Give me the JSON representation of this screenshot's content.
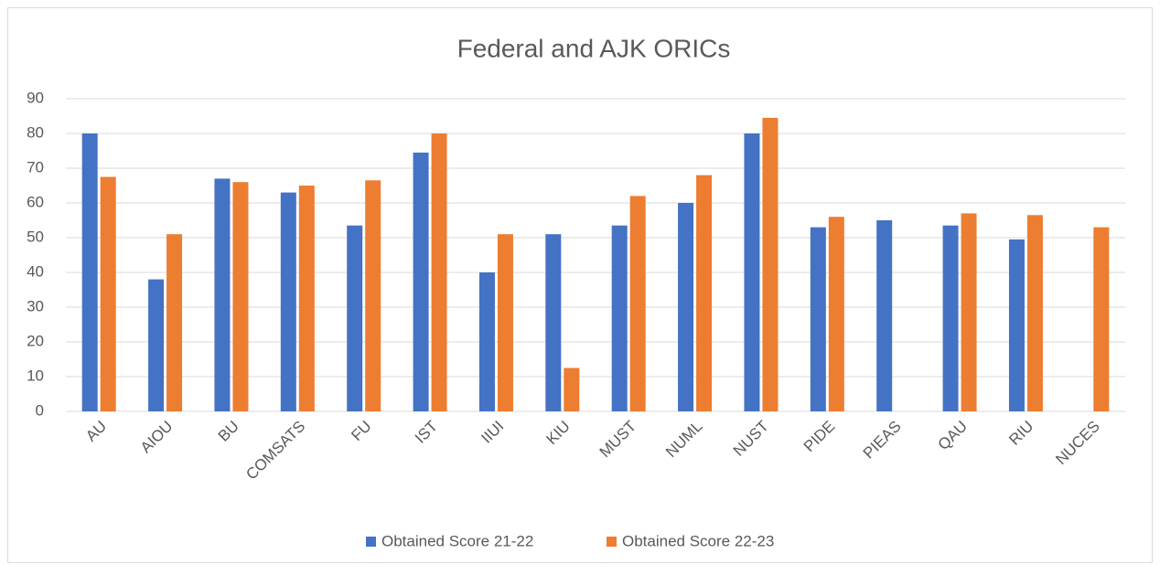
{
  "chart_data": {
    "type": "bar",
    "title": "Federal and AJK ORICs",
    "categories": [
      "AU",
      "AIOU",
      "BU",
      "COMSATS",
      "FU",
      "IST",
      "IIUI",
      "KIU",
      "MUST",
      "NUML",
      "NUST",
      "PIDE",
      "PIEAS",
      "QAU",
      "RIU",
      "NUCES"
    ],
    "series": [
      {
        "name": "Obtained Score 21-22",
        "color": "#4472c4",
        "values": [
          80,
          38,
          67,
          63,
          53.5,
          74.5,
          40,
          51,
          53.5,
          60,
          80,
          53,
          55,
          53.5,
          49.5,
          null
        ]
      },
      {
        "name": "Obtained Score 22-23",
        "color": "#ed7d31",
        "values": [
          67.5,
          51,
          66,
          65,
          66.5,
          80,
          51,
          12.5,
          62,
          68,
          84.5,
          56,
          null,
          57,
          56.5,
          53
        ]
      }
    ],
    "ylim": [
      0,
      90
    ],
    "yticks": [
      0,
      10,
      20,
      30,
      40,
      50,
      60,
      70,
      80,
      90
    ],
    "grid": true,
    "legend": "bottom"
  }
}
